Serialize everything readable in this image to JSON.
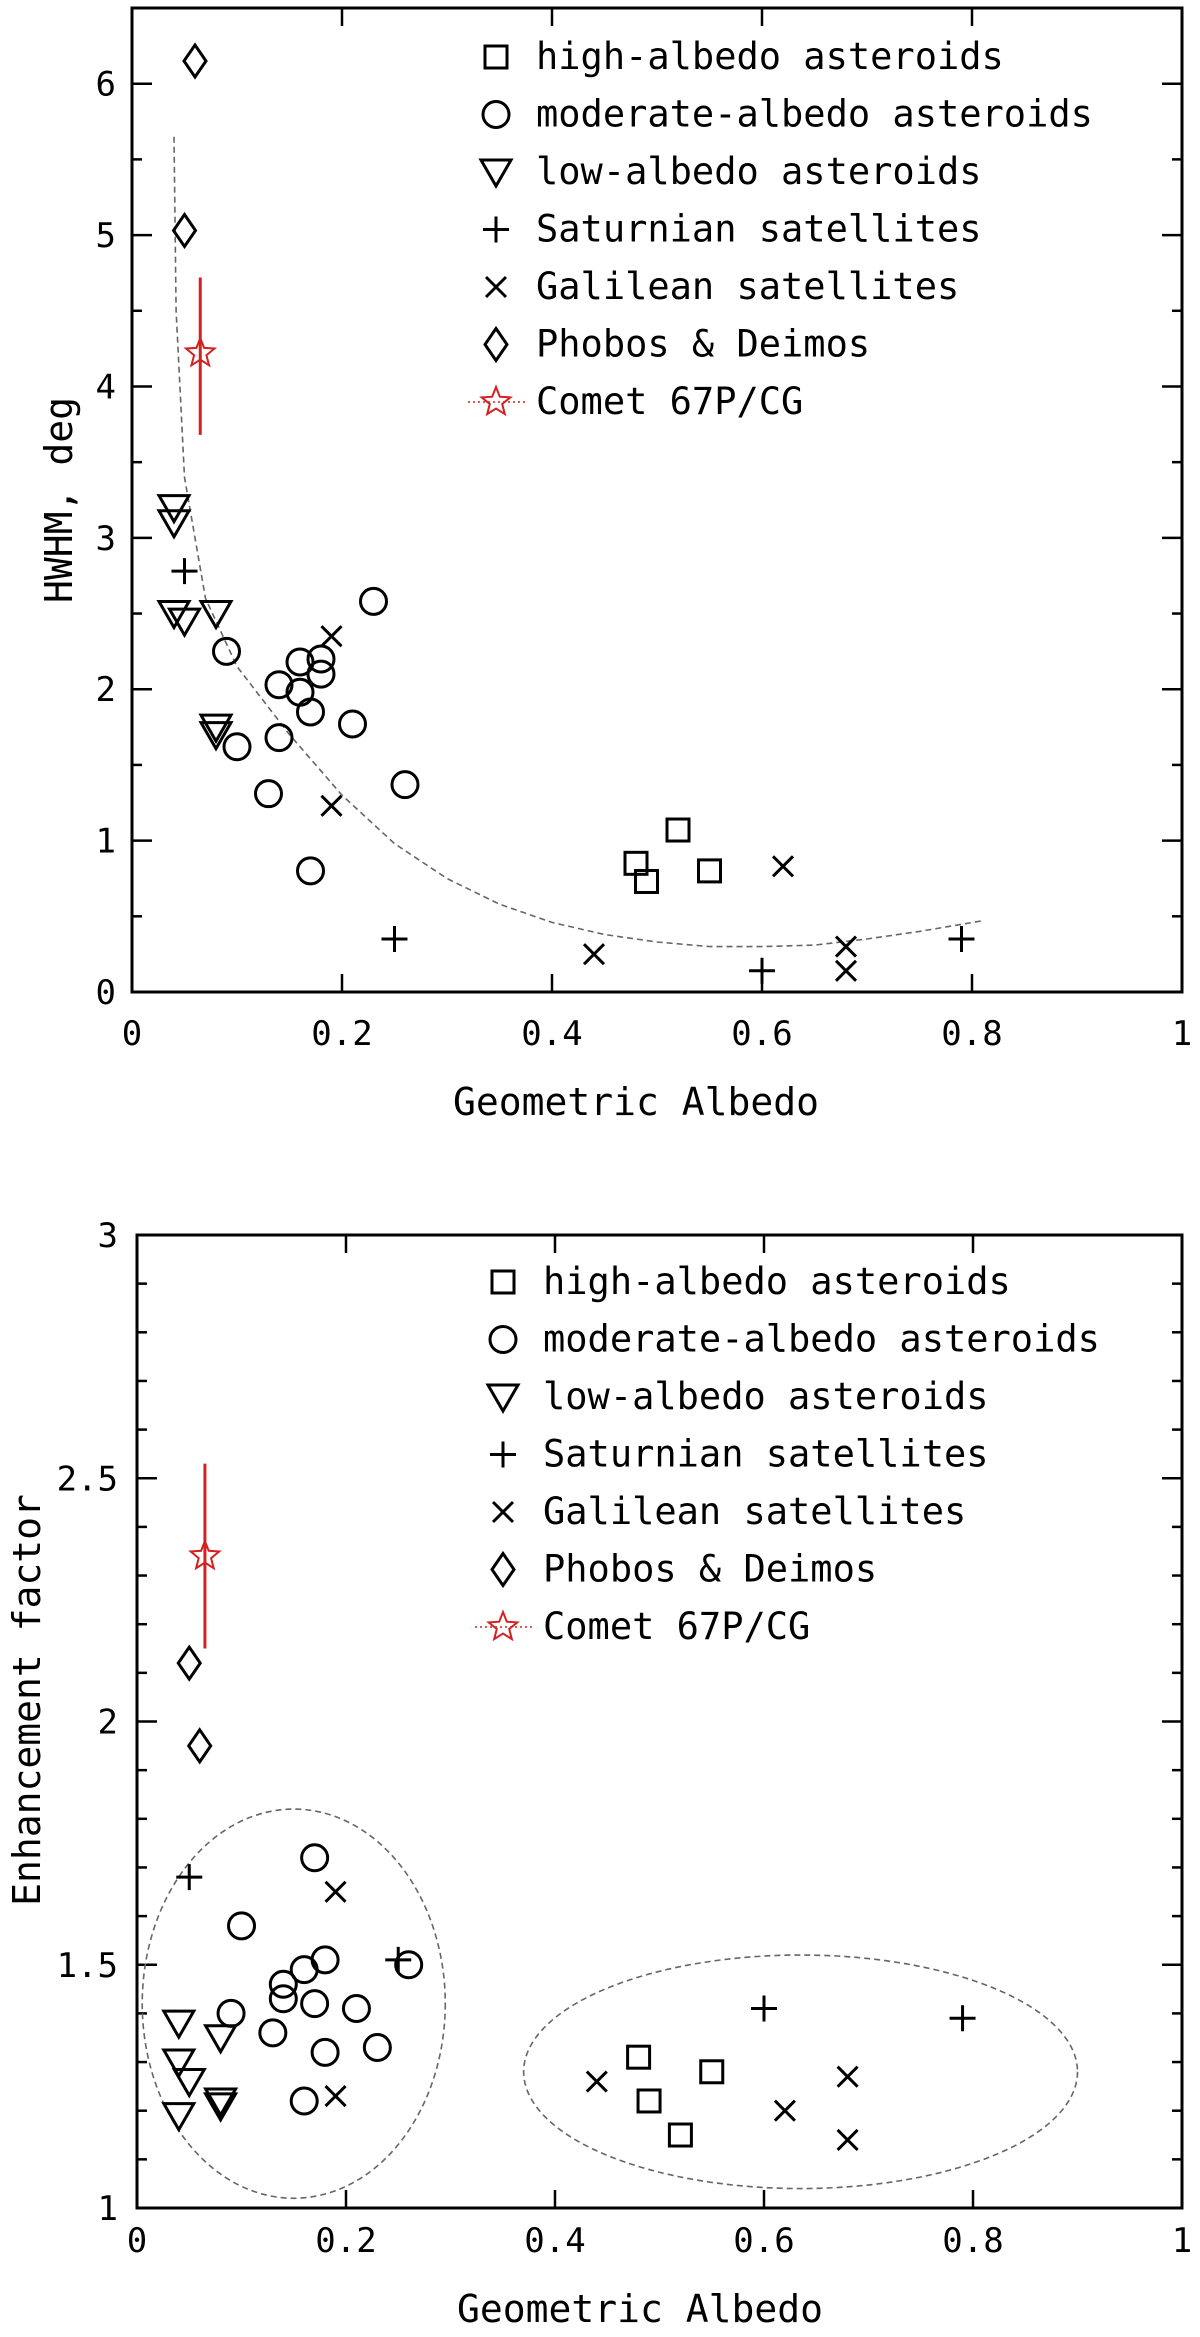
{
  "legend": {
    "high": "high-albedo asteroids",
    "moderate": "moderate-albedo asteroids",
    "low": "low-albedo asteroids",
    "saturnian": "Saturnian satellites",
    "galilean": "Galilean satellites",
    "phobos": "Phobos & Deimos",
    "comet": "Comet 67P/CG"
  },
  "colors": {
    "comet": "#d42020",
    "ink": "#000000",
    "dashed": "#666666"
  },
  "chart_data": [
    {
      "type": "scatter",
      "xlabel": "Geometric Albedo",
      "ylabel": "HWHM, deg",
      "xlim": [
        0,
        1
      ],
      "ylim": [
        0,
        6.5
      ],
      "xticks": [
        "0",
        "0.2",
        "0.4",
        "0.6",
        "0.8",
        "1"
      ],
      "yticks": [
        "0",
        "1",
        "2",
        "3",
        "4",
        "5",
        "6"
      ],
      "legend_position": "top-right",
      "series": {
        "high": [
          [
            0.48,
            0.85
          ],
          [
            0.49,
            0.73
          ],
          [
            0.52,
            1.07
          ],
          [
            0.55,
            0.8
          ]
        ],
        "moderate": [
          [
            0.09,
            2.25
          ],
          [
            0.1,
            1.62
          ],
          [
            0.13,
            1.31
          ],
          [
            0.14,
            2.03
          ],
          [
            0.14,
            1.68
          ],
          [
            0.16,
            2.18
          ],
          [
            0.16,
            1.98
          ],
          [
            0.17,
            1.85
          ],
          [
            0.17,
            0.8
          ],
          [
            0.18,
            2.1
          ],
          [
            0.18,
            2.2
          ],
          [
            0.21,
            1.77
          ],
          [
            0.23,
            2.58
          ],
          [
            0.26,
            1.37
          ]
        ],
        "low": [
          [
            0.04,
            3.2
          ],
          [
            0.04,
            3.1
          ],
          [
            0.04,
            2.5
          ],
          [
            0.05,
            2.45
          ],
          [
            0.08,
            2.5
          ],
          [
            0.08,
            1.75
          ],
          [
            0.08,
            1.7
          ]
        ],
        "saturnian": [
          [
            0.05,
            2.78
          ],
          [
            0.25,
            0.35
          ],
          [
            0.6,
            0.14
          ],
          [
            0.79,
            0.35
          ]
        ],
        "galilean": [
          [
            0.19,
            2.35
          ],
          [
            0.19,
            1.23
          ],
          [
            0.44,
            0.25
          ],
          [
            0.62,
            0.83
          ],
          [
            0.68,
            0.3
          ],
          [
            0.68,
            0.14
          ]
        ],
        "phobos": [
          [
            0.06,
            6.15
          ],
          [
            0.05,
            5.03
          ]
        ],
        "comet": {
          "x": 0.065,
          "y": 4.22,
          "ylow": 3.68,
          "yhigh": 4.72
        }
      },
      "trend_curve": [
        [
          0.04,
          5.65
        ],
        [
          0.042,
          4.5
        ],
        [
          0.05,
          3.4
        ],
        [
          0.07,
          2.6
        ],
        [
          0.1,
          2.15
        ],
        [
          0.15,
          1.7
        ],
        [
          0.2,
          1.3
        ],
        [
          0.25,
          0.98
        ],
        [
          0.3,
          0.75
        ],
        [
          0.35,
          0.58
        ],
        [
          0.4,
          0.46
        ],
        [
          0.45,
          0.38
        ],
        [
          0.5,
          0.33
        ],
        [
          0.55,
          0.3
        ],
        [
          0.6,
          0.3
        ],
        [
          0.65,
          0.31
        ],
        [
          0.7,
          0.35
        ],
        [
          0.75,
          0.4
        ],
        [
          0.81,
          0.47
        ]
      ]
    },
    {
      "type": "scatter",
      "xlabel": "Geometric Albedo",
      "ylabel": "Enhancement factor",
      "xlim": [
        0,
        1
      ],
      "ylim": [
        1,
        3
      ],
      "xticks": [
        "0",
        "0.2",
        "0.4",
        "0.6",
        "0.8",
        "1"
      ],
      "yticks": [
        "1",
        "1.5",
        "2",
        "2.5",
        "3"
      ],
      "legend_position": "top-right",
      "series": {
        "high": [
          [
            0.48,
            1.31
          ],
          [
            0.49,
            1.22
          ],
          [
            0.52,
            1.15
          ],
          [
            0.55,
            1.28
          ]
        ],
        "moderate": [
          [
            0.09,
            1.4
          ],
          [
            0.1,
            1.58
          ],
          [
            0.13,
            1.36
          ],
          [
            0.14,
            1.46
          ],
          [
            0.14,
            1.43
          ],
          [
            0.16,
            1.49
          ],
          [
            0.16,
            1.22
          ],
          [
            0.17,
            1.72
          ],
          [
            0.17,
            1.42
          ],
          [
            0.18,
            1.51
          ],
          [
            0.18,
            1.32
          ],
          [
            0.21,
            1.41
          ],
          [
            0.23,
            1.33
          ],
          [
            0.26,
            1.5
          ]
        ],
        "low": [
          [
            0.04,
            1.38
          ],
          [
            0.04,
            1.3
          ],
          [
            0.04,
            1.19
          ],
          [
            0.05,
            1.26
          ],
          [
            0.08,
            1.35
          ],
          [
            0.08,
            1.22
          ],
          [
            0.08,
            1.21
          ]
        ],
        "saturnian": [
          [
            0.05,
            1.68
          ],
          [
            0.25,
            1.51
          ],
          [
            0.6,
            1.41
          ],
          [
            0.79,
            1.39
          ]
        ],
        "galilean": [
          [
            0.19,
            1.65
          ],
          [
            0.19,
            1.23
          ],
          [
            0.44,
            1.26
          ],
          [
            0.62,
            1.2
          ],
          [
            0.68,
            1.27
          ],
          [
            0.68,
            1.14
          ]
        ],
        "phobos": [
          [
            0.05,
            2.12
          ],
          [
            0.06,
            1.95
          ]
        ],
        "comet": {
          "x": 0.065,
          "y": 2.34,
          "ylow": 2.15,
          "yhigh": 2.53
        }
      },
      "ellipses": [
        {
          "cx": 0.15,
          "cy": 1.42,
          "rx": 0.145,
          "ry": 0.4
        },
        {
          "cx": 0.635,
          "cy": 1.28,
          "rx": 0.265,
          "ry": 0.24
        }
      ]
    }
  ]
}
